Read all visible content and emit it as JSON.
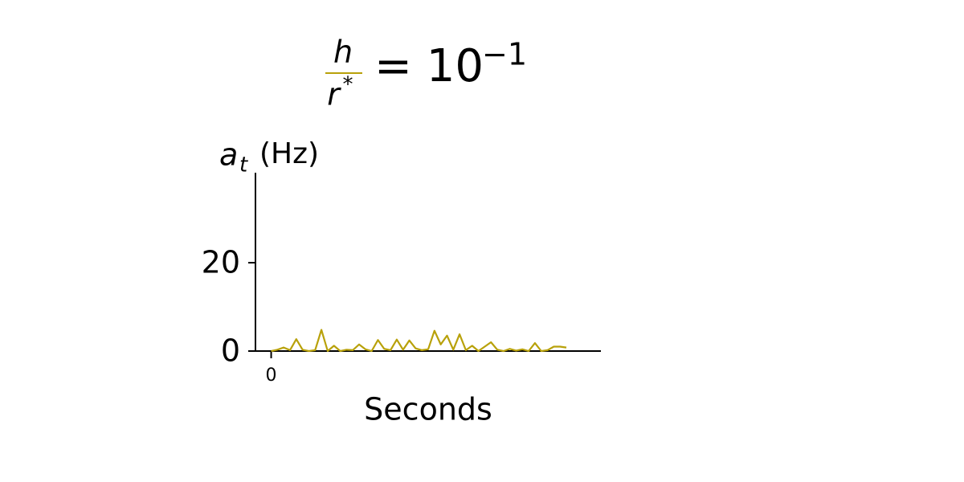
{
  "chart_data": {
    "type": "line",
    "title": {
      "numerator": "h",
      "denominator": "r",
      "denominator_sup": "*",
      "equals": "= 10",
      "exponent": "−1"
    },
    "title_color": "#b8a10a",
    "ylabel": {
      "symbol": "a",
      "subscript": "t",
      "unit": "(Hz)"
    },
    "xlabel": "Seconds",
    "x": [
      0,
      0.02,
      0.04,
      0.06,
      0.08,
      0.1,
      0.12,
      0.14,
      0.16,
      0.18,
      0.2,
      0.22,
      0.24,
      0.26,
      0.28,
      0.3,
      0.32,
      0.34,
      0.36,
      0.38,
      0.4,
      0.42,
      0.44,
      0.46,
      0.48,
      0.5,
      0.52,
      0.54,
      0.56,
      0.58,
      0.6,
      0.62,
      0.64,
      0.66,
      0.68,
      0.7,
      0.72,
      0.74,
      0.76,
      0.78,
      0.8,
      0.82,
      0.84,
      0.86,
      0.88,
      0.9,
      0.92,
      0.94
    ],
    "series": [
      {
        "color": "#b8a10a",
        "values": [
          0,
          0.3,
          0.8,
          0.2,
          2.7,
          0.3,
          0,
          0.2,
          4.8,
          0,
          1.2,
          0,
          0.3,
          0.2,
          1.5,
          0.4,
          0,
          2.5,
          0.5,
          0.2,
          2.6,
          0.3,
          2.4,
          0.6,
          0.2,
          0.4,
          4.6,
          1.5,
          3.5,
          0.3,
          3.8,
          0.2,
          1.2,
          0,
          1,
          2,
          0.3,
          0,
          0.5,
          0.1,
          0.4,
          0,
          1.8,
          0,
          0.2,
          1,
          1,
          0.8
        ]
      }
    ],
    "xlim": [
      -0.05,
      1.05
    ],
    "xticks": [
      0
    ],
    "ylim": [
      0,
      40
    ],
    "yticks": [
      0,
      20
    ]
  }
}
